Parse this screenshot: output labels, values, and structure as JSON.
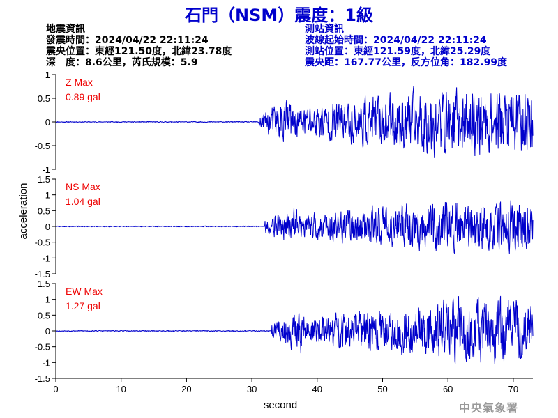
{
  "title": "石門（NSM）震度：1級",
  "quake": {
    "heading": "地震資訊",
    "time": "發震時間：2024/04/22 22:11:24",
    "location": "震央位置：東經121.50度，北緯23.78度",
    "depth_mag": "深　度：8.6公里，芮氏規模：5.9"
  },
  "station": {
    "heading": "測站資訊",
    "onset": "波線起始時間：2024/04/22 22:11:24",
    "location": "測站位置：東經121.59度，北緯25.29度",
    "distance": "震央距：167.77公里，反方位角：182.99度"
  },
  "credit": "中央氣象署",
  "colors": {
    "trace": "#0000cc",
    "max_label": "#ee0000",
    "axis": "#000000"
  },
  "chart_data": {
    "type": "line",
    "xlabel": "second",
    "ylabel": "acceleration",
    "xlim": [
      0,
      73
    ],
    "x_ticks": [
      0,
      10,
      20,
      30,
      40,
      50,
      60,
      70
    ],
    "series": [
      {
        "name": "Z Max",
        "max_label": "0.89 gal",
        "ylim": [
          -1,
          1
        ],
        "y_ticks": [
          -1,
          -0.5,
          0,
          0.5,
          1
        ],
        "y_tick_labels": [
          "-1",
          "-0.5",
          "0",
          "0.5",
          "1"
        ],
        "onset": 31,
        "peak": 0.89,
        "seed": 11
      },
      {
        "name": "NS Max",
        "max_label": "1.04 gal",
        "ylim": [
          -1.5,
          1.5
        ],
        "y_ticks": [
          -1.5,
          -1,
          -0.5,
          0,
          0.5,
          1,
          1.5
        ],
        "y_tick_labels": [
          "-1.5",
          "-1",
          "-0.5",
          "0",
          "0.5",
          "1",
          "1.5"
        ],
        "onset": 32,
        "peak": 1.04,
        "seed": 27
      },
      {
        "name": "EW Max",
        "max_label": "1.27 gal",
        "ylim": [
          -1.5,
          1.5
        ],
        "y_ticks": [
          -1.5,
          -1,
          -0.5,
          0,
          0.5,
          1,
          1.5
        ],
        "y_tick_labels": [
          "-1.5",
          "-1",
          "-0.5",
          "0",
          "0.5",
          "1",
          "1.5"
        ],
        "onset": 33,
        "peak": 1.27,
        "seed": 53
      }
    ]
  }
}
